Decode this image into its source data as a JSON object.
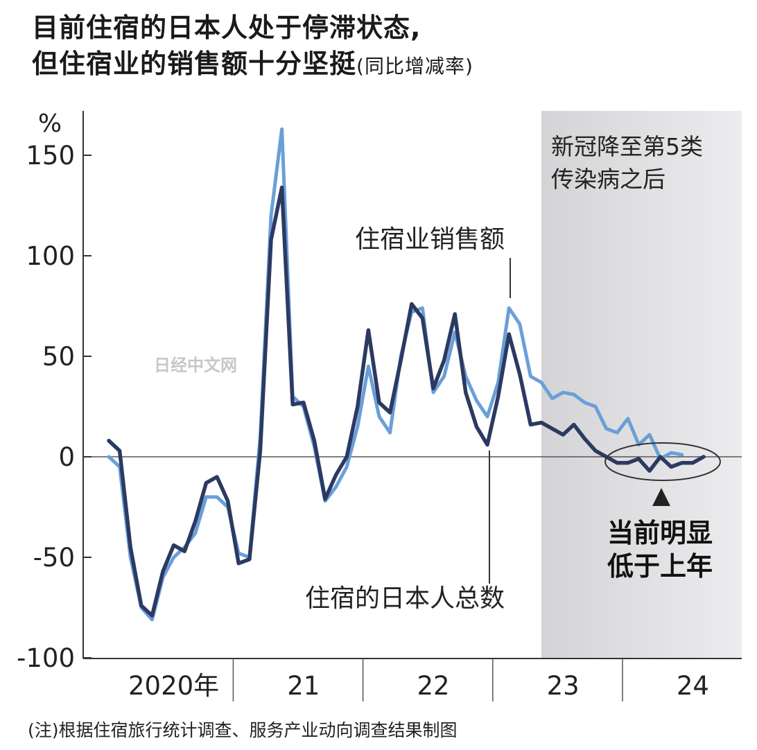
{
  "title_line1": "目前住宿的日本人处于停滞状态,",
  "title_line2": "但住宿业的销售额十分坚挺",
  "title_sub": "(同比增减率)",
  "note": "(注)根据住宿旅行统计调查、服务产业动向调查结果制图",
  "watermark": "日经中文网",
  "chart_data": {
    "type": "line",
    "y_unit": "%",
    "ylim": [
      -100,
      170
    ],
    "y_ticks": [
      "150",
      "100",
      "50",
      "0",
      "-50",
      "-100"
    ],
    "y_tick_values": [
      150,
      100,
      50,
      0,
      -50,
      -100
    ],
    "x_labels": [
      "2020年",
      "21",
      "22",
      "23",
      "24"
    ],
    "x_label_months": [
      6.5,
      18.5,
      30.5,
      42.5,
      54.5
    ],
    "year_boundaries": [
      12,
      24,
      36,
      48
    ],
    "x_range": [
      0,
      57
    ],
    "shaded_region": {
      "from_month": 40,
      "label_line1": "新冠降至第5类",
      "label_line2": "传染病之后"
    },
    "series": [
      {
        "name": "住宿业销售额",
        "color": "#6a9fd8",
        "start_month": 0,
        "values": [
          0,
          -5,
          -50,
          -75,
          -81,
          -60,
          -50,
          -45,
          -38,
          -20,
          -20,
          -25,
          -48,
          -50,
          10,
          120,
          163,
          30,
          25,
          5,
          -22,
          -15,
          -5,
          15,
          45,
          20,
          12,
          50,
          72,
          74,
          32,
          40,
          62,
          40,
          28,
          20,
          37,
          74,
          66,
          40,
          37,
          29,
          32,
          31,
          27,
          25,
          14,
          12,
          19,
          6,
          11,
          -1,
          2,
          1
        ]
      },
      {
        "name": "住宿的日本人总数",
        "color": "#2c3a62",
        "start_month": 0,
        "values": [
          8,
          3,
          -45,
          -74,
          -79,
          -57,
          -44,
          -47,
          -32,
          -13,
          -10,
          -22,
          -53,
          -51,
          3,
          108,
          134,
          26,
          27,
          8,
          -21,
          -9,
          0,
          25,
          63,
          27,
          22,
          48,
          76,
          69,
          34,
          48,
          71,
          32,
          15,
          6,
          30,
          61,
          41,
          16,
          17,
          14,
          11,
          16,
          9,
          3,
          0,
          -3,
          -3,
          -1,
          -7,
          0,
          -5,
          -3,
          -3,
          0
        ]
      }
    ],
    "annotations": [
      {
        "text": "住宿业销售额",
        "series": 0
      },
      {
        "text": "住宿的日本人总数",
        "series": 1
      },
      {
        "text_line1": "当前明显",
        "text_line2": "低于上年"
      }
    ]
  }
}
